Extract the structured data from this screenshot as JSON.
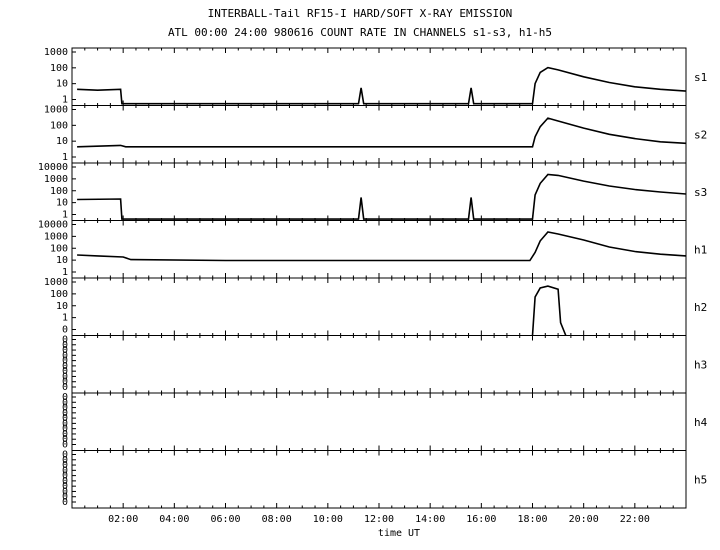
{
  "title": "INTERBALL-Tail RF15-I HARD/SOFT X-RAY EMISSION",
  "subtitle": "ATL 00:00 24:00 980616  COUNT RATE IN CHANNELS s1-s3, h1-h5",
  "chart_data": {
    "type": "line",
    "title": "INTERBALL-Tail RF15-I HARD/SOFT X-RAY EMISSION",
    "subtitle": "ATL 00:00 24:00 980616  COUNT RATE IN CHANNELS s1-s3, h1-h5",
    "xlabel": "time UT",
    "xlim": [
      0,
      24
    ],
    "x_ticks": [
      "02:00",
      "04:00",
      "06:00",
      "08:00",
      "10:00",
      "12:00",
      "14:00",
      "16:00",
      "18:00",
      "20:00",
      "22:00"
    ],
    "y_scale": "log",
    "grid": false,
    "panels": [
      {
        "name": "s1",
        "y_ticks": [
          "1000",
          "100",
          "10",
          "1"
        ],
        "ylim": [
          0.3,
          3000
        ],
        "points": [
          [
            0.2,
            4
          ],
          [
            1.0,
            3.5
          ],
          [
            1.9,
            4
          ],
          [
            1.95,
            0.4
          ],
          [
            7.0,
            0.4
          ],
          [
            11.2,
            0.4
          ],
          [
            11.3,
            5
          ],
          [
            11.4,
            0.4
          ],
          [
            13.2,
            0.4
          ],
          [
            15.5,
            0.4
          ],
          [
            15.6,
            5
          ],
          [
            15.7,
            0.4
          ],
          [
            18.0,
            0.4
          ],
          [
            18.1,
            10
          ],
          [
            18.3,
            60
          ],
          [
            18.6,
            130
          ],
          [
            19.0,
            90
          ],
          [
            20.0,
            30
          ],
          [
            21.0,
            12
          ],
          [
            22.0,
            6
          ],
          [
            23.0,
            4
          ],
          [
            24.0,
            3
          ]
        ]
      },
      {
        "name": "s2",
        "y_ticks": [
          "1000",
          "100",
          "10",
          "1"
        ],
        "ylim": [
          0.3,
          3000
        ],
        "points": [
          [
            0.2,
            4
          ],
          [
            1.9,
            5
          ],
          [
            2.1,
            4
          ],
          [
            6.0,
            4
          ],
          [
            10.0,
            4
          ],
          [
            14.0,
            4
          ],
          [
            18.0,
            4
          ],
          [
            18.1,
            20
          ],
          [
            18.3,
            100
          ],
          [
            18.6,
            400
          ],
          [
            19.0,
            250
          ],
          [
            20.0,
            80
          ],
          [
            21.0,
            30
          ],
          [
            22.0,
            15
          ],
          [
            23.0,
            9
          ],
          [
            24.0,
            7
          ]
        ]
      },
      {
        "name": "s3",
        "y_ticks": [
          "10000",
          "1000",
          "100",
          "10",
          "1"
        ],
        "ylim": [
          0.3,
          30000
        ],
        "points": [
          [
            0.2,
            20
          ],
          [
            1.9,
            22
          ],
          [
            1.95,
            0.4
          ],
          [
            7.0,
            0.4
          ],
          [
            11.2,
            0.4
          ],
          [
            11.3,
            30
          ],
          [
            11.4,
            0.4
          ],
          [
            13.2,
            0.4
          ],
          [
            15.5,
            0.4
          ],
          [
            15.6,
            30
          ],
          [
            15.7,
            0.4
          ],
          [
            18.0,
            0.4
          ],
          [
            18.1,
            50
          ],
          [
            18.3,
            500
          ],
          [
            18.6,
            3000
          ],
          [
            19.0,
            2500
          ],
          [
            20.0,
            800
          ],
          [
            21.0,
            300
          ],
          [
            22.0,
            150
          ],
          [
            23.0,
            90
          ],
          [
            24.0,
            60
          ]
        ]
      },
      {
        "name": "h1",
        "y_ticks": [
          "10000",
          "1000",
          "100",
          "10",
          "1"
        ],
        "ylim": [
          0.3,
          30000
        ],
        "points": [
          [
            0.2,
            30
          ],
          [
            1.0,
            25
          ],
          [
            2.0,
            20
          ],
          [
            2.3,
            12
          ],
          [
            6.0,
            10
          ],
          [
            10.0,
            10
          ],
          [
            14.0,
            10
          ],
          [
            17.9,
            10
          ],
          [
            18.1,
            50
          ],
          [
            18.3,
            500
          ],
          [
            18.6,
            3000
          ],
          [
            19.0,
            2000
          ],
          [
            20.0,
            600
          ],
          [
            21.0,
            150
          ],
          [
            22.0,
            60
          ],
          [
            23.0,
            35
          ],
          [
            24.0,
            25
          ]
        ]
      },
      {
        "name": "h2",
        "y_ticks": [
          "1000",
          "100",
          "10",
          "1",
          "0"
        ],
        "ylim": [
          0.1,
          3000
        ],
        "points": [
          [
            18.0,
            0.1
          ],
          [
            18.1,
            100
          ],
          [
            18.3,
            500
          ],
          [
            18.6,
            700
          ],
          [
            19.0,
            400
          ],
          [
            19.1,
            1
          ],
          [
            19.3,
            0.1
          ]
        ]
      },
      {
        "name": "h3",
        "y_ticks": [
          "0",
          "0",
          "0",
          "0",
          "0",
          "0",
          "0",
          "0",
          "0",
          "0"
        ],
        "ylim": [
          0,
          1
        ],
        "points": []
      },
      {
        "name": "h4",
        "y_ticks": [
          "0",
          "0",
          "0",
          "0",
          "0",
          "0",
          "0",
          "0",
          "0",
          "0"
        ],
        "ylim": [
          0,
          1
        ],
        "points": []
      },
      {
        "name": "h5",
        "y_ticks": [
          "0",
          "0",
          "0",
          "0",
          "0",
          "0",
          "0",
          "0",
          "0",
          "0"
        ],
        "ylim": [
          0,
          1
        ],
        "points": []
      }
    ]
  }
}
